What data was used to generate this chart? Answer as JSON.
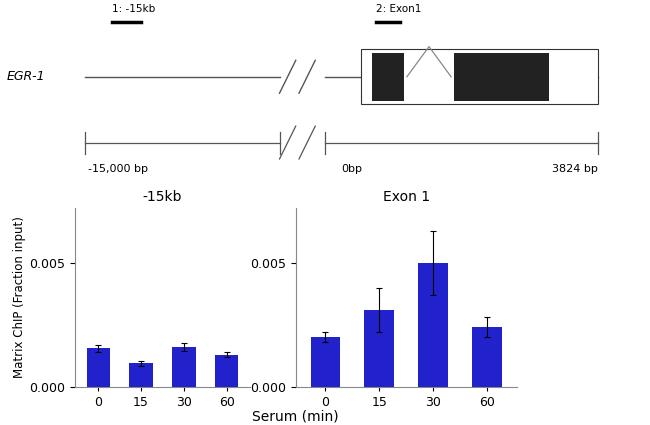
{
  "bar_color": "#2222CC",
  "neg15kb_values": [
    0.00155,
    0.00095,
    0.0016,
    0.0013
  ],
  "neg15kb_errors": [
    0.00015,
    0.0001,
    0.00015,
    0.00012
  ],
  "exon1_values": [
    0.002,
    0.0031,
    0.005,
    0.0024
  ],
  "exon1_errors": [
    0.0002,
    0.0009,
    0.0013,
    0.0004
  ],
  "x_labels": [
    "0",
    "15",
    "30",
    "60"
  ],
  "ylabel": "Matrix ChIP (Fraction input)",
  "xlabel": "Serum (min)",
  "neg15kb_title": "-15kb",
  "exon1_title": "Exon 1",
  "ylim": [
    0,
    0.0072
  ],
  "yticks": [
    0.0,
    0.005
  ],
  "gene_name": "EGR-1",
  "label1": "1: -15kb",
  "label2": "2: Exon1",
  "bp_neg15000": "-15,000 bp",
  "bp_0": "0bp",
  "bp_3824": "3824 bp",
  "background_color": "#ffffff",
  "gene_line_color": "#555555",
  "scale_line_color": "#555555"
}
